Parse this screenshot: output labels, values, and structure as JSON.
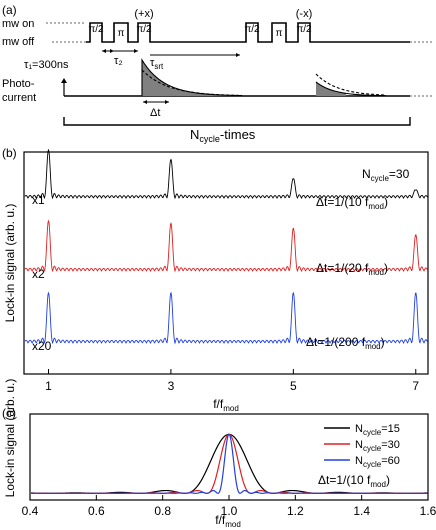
{
  "panel_a": {
    "label": "(a)",
    "mw_on": "mw on",
    "mw_off": "mw off",
    "pulse_half": "π/2",
    "pulse_pi": "π",
    "phase_plus": "(+x)",
    "phase_minus": "(-x)",
    "tau1": "τ₁=300ns",
    "tau2": "τ₂",
    "tau_srt": "τ",
    "tau_srt_sub": "srt",
    "photocurrent_line1": "Photo-",
    "photocurrent_line2": "current",
    "delta_t": "Δt",
    "ncycle": "N",
    "ncycle_sub": "cycle",
    "ncycle_suffix": "-times"
  },
  "chart_data": [
    {
      "type": "line",
      "panel": "(b)",
      "xlabel": "f/f",
      "xlabel_sub": "mod",
      "ylabel": "Lock-in signal (arb. u.)",
      "xticks": [
        1,
        3,
        5,
        7
      ],
      "xlim": [
        0.6,
        7.2
      ],
      "note": {
        "pre": "N",
        "sub": "cycle",
        "post": "=30"
      },
      "series": [
        {
          "name": "x1",
          "color": "#000000",
          "annotation": {
            "pre": "Δt=1/(10 f",
            "sub": "mod",
            "post": ")"
          },
          "peak_heights": [
            1.0,
            0.8,
            0.4,
            0.16
          ]
        },
        {
          "name": "x2",
          "color": "#e02020",
          "annotation": {
            "pre": "Δt=1/(20 f",
            "sub": "mod",
            "post": ")"
          },
          "peak_heights": [
            1.0,
            0.95,
            0.85,
            0.72
          ]
        },
        {
          "name": "x20",
          "color": "#2040e0",
          "annotation": {
            "pre": "Δt=1/(200 f",
            "sub": "mod",
            "post": ")"
          },
          "peak_heights": [
            1.0,
            1.0,
            1.0,
            1.0
          ]
        }
      ]
    },
    {
      "type": "line",
      "panel": "(c)",
      "xlabel": "f/f",
      "xlabel_sub": "mod",
      "ylabel": "Lock-in signal (arb. u.)",
      "xlim": [
        0.4,
        1.6
      ],
      "xticks": [
        "0.4",
        "0.6",
        "0.8",
        "1.0",
        "1.2",
        "1.4",
        "1.6"
      ],
      "annotation": {
        "pre": "Δt=1/(10 f",
        "sub": "mod",
        "post": ")"
      },
      "series": [
        {
          "name": "N",
          "sub": "cycle",
          "post": "=15",
          "n": 15,
          "color": "#000000"
        },
        {
          "name": "N",
          "sub": "cycle",
          "post": "=30",
          "n": 30,
          "color": "#e02020"
        },
        {
          "name": "N",
          "sub": "cycle",
          "post": "=60",
          "n": 60,
          "color": "#2040e0"
        }
      ]
    }
  ]
}
